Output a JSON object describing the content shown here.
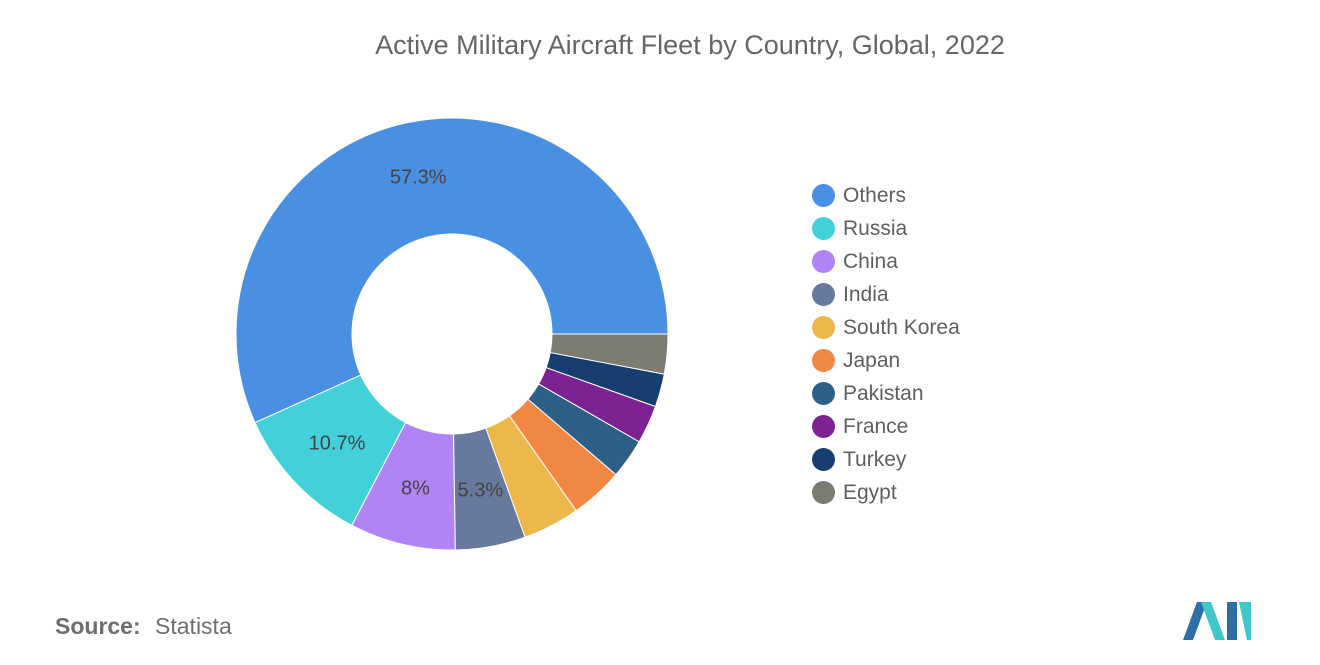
{
  "title": "Active Military Aircraft Fleet by Country, Global, 2022",
  "source": {
    "label": "Source:",
    "value": "Statista"
  },
  "colors": {
    "logo_primary": "#2f6fa6",
    "logo_accent": "#3fc7c9"
  },
  "chart_data": {
    "type": "pie",
    "donut": true,
    "legend_position": "right",
    "series": [
      {
        "name": "Others",
        "value": 57.3,
        "label": "57.3%",
        "color": "#4a90e2"
      },
      {
        "name": "Russia",
        "value": 10.7,
        "label": "10.7%",
        "color": "#42d1d8"
      },
      {
        "name": "China",
        "value": 8.0,
        "label": "8%",
        "color": "#b184f6"
      },
      {
        "name": "India",
        "value": 5.3,
        "label": "5.3%",
        "color": "#677a9e"
      },
      {
        "name": "South Korea",
        "value": 4.3,
        "label": "",
        "color": "#ecb84c"
      },
      {
        "name": "Japan",
        "value": 4.0,
        "label": "",
        "color": "#f08742"
      },
      {
        "name": "Pakistan",
        "value": 3.0,
        "label": "",
        "color": "#2d5f87"
      },
      {
        "name": "France",
        "value": 2.9,
        "label": "",
        "color": "#7d2293"
      },
      {
        "name": "Turkey",
        "value": 2.5,
        "label": "",
        "color": "#163e6e"
      },
      {
        "name": "Egypt",
        "value": 3.0,
        "label": "",
        "color": "#7b7b72"
      }
    ]
  }
}
